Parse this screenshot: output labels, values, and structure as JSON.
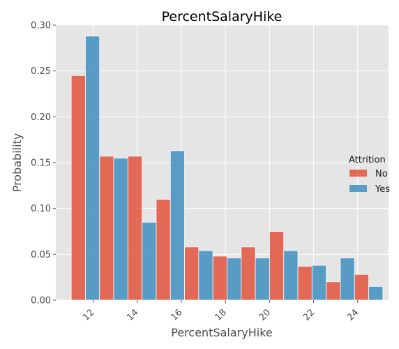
{
  "chart_data": {
    "type": "bar",
    "title": "PercentSalaryHike",
    "xlabel": "PercentSalaryHike",
    "ylabel": "Probability",
    "xlim": [
      10.3,
      25.4
    ],
    "ylim": [
      0,
      0.3
    ],
    "x_ticks": [
      12,
      14,
      16,
      18,
      20,
      22,
      24
    ],
    "y_ticks": [
      0.0,
      0.05,
      0.1,
      0.15,
      0.2,
      0.25,
      0.3
    ],
    "y_tick_labels": [
      "0.00",
      "0.05",
      "0.10",
      "0.15",
      "0.20",
      "0.25",
      "0.30"
    ],
    "grid": true,
    "legend_title": "Attrition",
    "legend_position": "right",
    "bin_edges": [
      11.0,
      12.2857,
      13.5714,
      14.8571,
      16.1429,
      17.4286,
      18.7143,
      20.0,
      21.2857,
      22.5714,
      23.8571,
      25.1429
    ],
    "series": [
      {
        "name": "No",
        "color": "#e24a33",
        "values": [
          0.245,
          0.157,
          0.157,
          0.11,
          0.058,
          0.048,
          0.058,
          0.075,
          0.037,
          0.02,
          0.028
        ]
      },
      {
        "name": "Yes",
        "color": "#348abd",
        "values": [
          0.288,
          0.155,
          0.085,
          0.163,
          0.054,
          0.046,
          0.046,
          0.054,
          0.038,
          0.046,
          0.015
        ]
      }
    ]
  }
}
